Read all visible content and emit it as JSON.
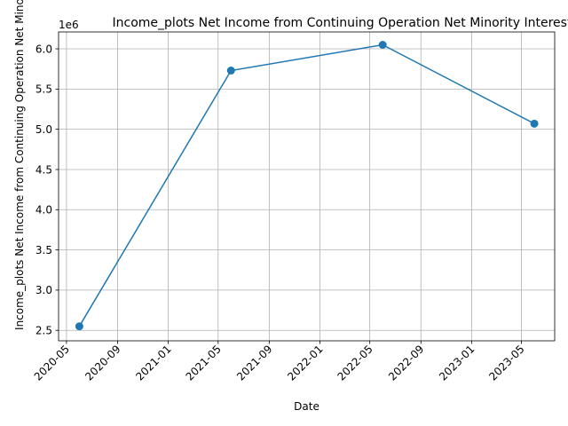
{
  "chart_data": {
    "type": "line",
    "title": "Income_plots Net Income from Continuing Operation Net Minority Interest",
    "xlabel": "Date",
    "ylabel": "Income_plots Net Income from Continuing Operation Net Minority Interest",
    "y_offset_label": "1e6",
    "x": [
      "2020-06-01",
      "2021-06-01",
      "2022-06-01",
      "2023-06-01"
    ],
    "y": [
      2.55,
      5.73,
      6.05,
      5.07
    ],
    "y_scale": 1000000,
    "x_ticks": [
      "2020-05",
      "2020-09",
      "2021-01",
      "2021-05",
      "2021-09",
      "2022-01",
      "2022-05",
      "2022-09",
      "2023-01",
      "2023-05"
    ],
    "y_ticks": [
      "2.5",
      "3.0",
      "3.5",
      "4.0",
      "4.5",
      "5.0",
      "5.5",
      "6.0"
    ],
    "xlim": [
      "2020-04-12",
      "2023-07-20"
    ],
    "ylim": [
      2.37,
      6.21
    ],
    "grid": true,
    "line_color": "#1f77b4"
  }
}
